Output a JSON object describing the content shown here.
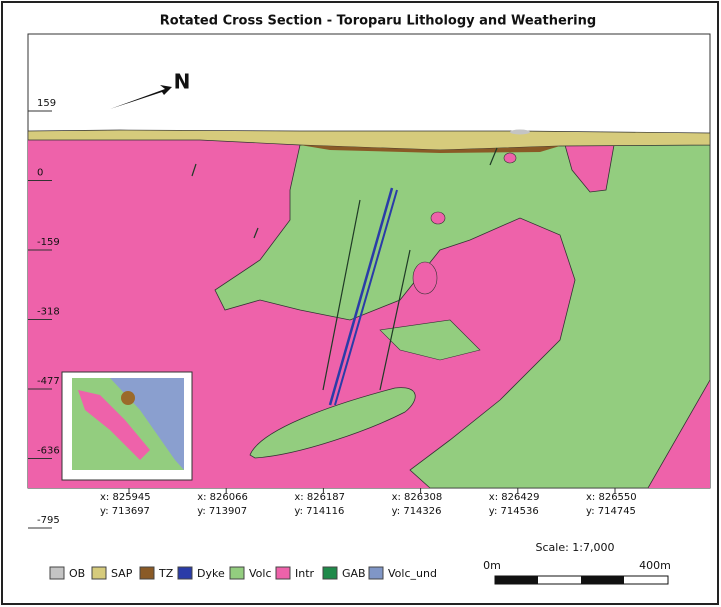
{
  "title": "Rotated Cross Section - Toroparu Lithology and Weathering",
  "north_label": "N",
  "depth_labels": [
    "159",
    "0",
    "-159",
    "-318",
    "-477",
    "-636",
    "-795"
  ],
  "coordinates": [
    {
      "x": "x: 825945",
      "y": "y: 713697"
    },
    {
      "x": "x: 826066",
      "y": "y: 713907"
    },
    {
      "x": "x: 826187",
      "y": "y: 714116"
    },
    {
      "x": "x: 826308",
      "y": "y: 714326"
    },
    {
      "x": "x: 826429",
      "y": "y: 714536"
    },
    {
      "x": "x: 826550",
      "y": "y: 714745"
    }
  ],
  "scale": "Scale: 1:7,000",
  "scale_bar": {
    "start": "0m",
    "end": "400m"
  },
  "legend": [
    {
      "label": "OB",
      "color": "#c4c4c4"
    },
    {
      "label": "SAP",
      "color": "#d6cb7c"
    },
    {
      "label": "TZ",
      "color": "#8a5a26"
    },
    {
      "label": "Dyke",
      "color": "#2a3ca8"
    },
    {
      "label": "Volc",
      "color": "#93cd7f"
    },
    {
      "label": "Intr",
      "color": "#ee62aa"
    },
    {
      "label": "GAB",
      "color": "#1f8a4a"
    },
    {
      "label": "Volc_und",
      "color": "#8096c6"
    }
  ]
}
